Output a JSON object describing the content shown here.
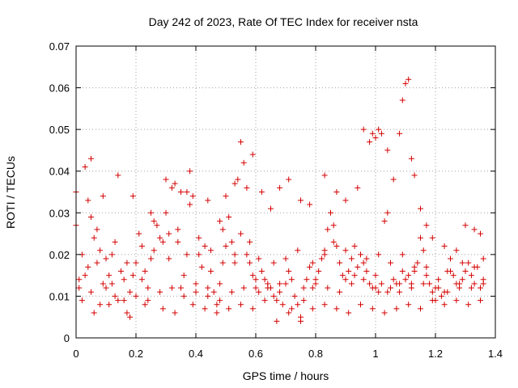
{
  "chart_data": {
    "type": "scatter",
    "title": "Day 242 of 2023, Rate Of TEC Index for receiver nsta",
    "xlabel": "GPS time / hours",
    "ylabel": "ROTI / TECUs",
    "xlim": [
      0,
      1.4
    ],
    "ylim": [
      0,
      0.07
    ],
    "x_ticks": [
      "0",
      "0.2",
      "0.4",
      "0.6",
      "0.8",
      "1",
      "1.2",
      "1.4"
    ],
    "y_ticks": [
      "0",
      "0.01",
      "0.02",
      "0.03",
      "0.04",
      "0.05",
      "0.06",
      "0.07"
    ],
    "grid": true,
    "marker": "+",
    "point_color": "#d40000",
    "series": [
      {
        "points": [
          [
            0.0,
            0.035
          ],
          [
            0.01,
            0.012
          ],
          [
            0.02,
            0.02
          ],
          [
            0.03,
            0.015
          ],
          [
            0.04,
            0.033
          ],
          [
            0.05,
            0.029
          ],
          [
            0.06,
            0.024
          ],
          [
            0.07,
            0.018
          ],
          [
            0.08,
            0.021
          ],
          [
            0.09,
            0.013
          ],
          [
            0.1,
            0.012
          ],
          [
            0.11,
            0.015
          ],
          [
            0.12,
            0.02
          ],
          [
            0.13,
            0.01
          ],
          [
            0.14,
            0.009
          ],
          [
            0.15,
            0.016
          ],
          [
            0.16,
            0.014
          ],
          [
            0.17,
            0.006
          ],
          [
            0.18,
            0.011
          ],
          [
            0.19,
            0.015
          ],
          [
            0.2,
            0.018
          ],
          [
            0.21,
            0.025
          ],
          [
            0.22,
            0.022
          ],
          [
            0.23,
            0.016
          ],
          [
            0.24,
            0.012
          ],
          [
            0.25,
            0.019
          ],
          [
            0.26,
            0.028
          ],
          [
            0.27,
            0.027
          ],
          [
            0.28,
            0.024
          ],
          [
            0.29,
            0.023
          ],
          [
            0.3,
            0.03
          ],
          [
            0.31,
            0.025
          ],
          [
            0.32,
            0.036
          ],
          [
            0.33,
            0.037
          ],
          [
            0.34,
            0.026
          ],
          [
            0.35,
            0.012
          ],
          [
            0.36,
            0.015
          ],
          [
            0.37,
            0.035
          ],
          [
            0.38,
            0.032
          ],
          [
            0.39,
            0.034
          ],
          [
            0.4,
            0.013
          ],
          [
            0.41,
            0.02
          ],
          [
            0.42,
            0.017
          ],
          [
            0.43,
            0.022
          ],
          [
            0.44,
            0.01
          ],
          [
            0.45,
            0.016
          ],
          [
            0.46,
            0.011
          ],
          [
            0.47,
            0.008
          ],
          [
            0.48,
            0.009
          ],
          [
            0.49,
            0.018
          ],
          [
            0.5,
            0.022
          ],
          [
            0.51,
            0.029
          ],
          [
            0.52,
            0.023
          ],
          [
            0.53,
            0.018
          ],
          [
            0.54,
            0.038
          ],
          [
            0.55,
            0.025
          ],
          [
            0.56,
            0.042
          ],
          [
            0.57,
            0.02
          ],
          [
            0.58,
            0.018
          ],
          [
            0.59,
            0.015
          ],
          [
            0.6,
            0.012
          ],
          [
            0.61,
            0.011
          ],
          [
            0.62,
            0.016
          ],
          [
            0.63,
            0.014
          ],
          [
            0.64,
            0.013
          ],
          [
            0.65,
            0.012
          ],
          [
            0.66,
            0.01
          ],
          [
            0.67,
            0.009
          ],
          [
            0.68,
            0.011
          ],
          [
            0.69,
            0.008
          ],
          [
            0.7,
            0.013
          ],
          [
            0.71,
            0.016
          ],
          [
            0.72,
            0.007
          ],
          [
            0.73,
            0.01
          ],
          [
            0.74,
            0.008
          ],
          [
            0.75,
            0.005
          ],
          [
            0.76,
            0.009
          ],
          [
            0.77,
            0.014
          ],
          [
            0.78,
            0.017
          ],
          [
            0.79,
            0.012
          ],
          [
            0.8,
            0.014
          ],
          [
            0.81,
            0.016
          ],
          [
            0.82,
            0.019
          ],
          [
            0.83,
            0.021
          ],
          [
            0.84,
            0.026
          ],
          [
            0.85,
            0.03
          ],
          [
            0.86,
            0.027
          ],
          [
            0.87,
            0.022
          ],
          [
            0.88,
            0.018
          ],
          [
            0.89,
            0.015
          ],
          [
            0.9,
            0.014
          ],
          [
            0.91,
            0.016
          ],
          [
            0.92,
            0.019
          ],
          [
            0.93,
            0.015
          ],
          [
            0.94,
            0.017
          ],
          [
            0.95,
            0.02
          ],
          [
            0.96,
            0.018
          ],
          [
            0.97,
            0.016
          ],
          [
            0.98,
            0.013
          ],
          [
            0.99,
            0.012
          ],
          [
            1.0,
            0.015
          ],
          [
            1.01,
            0.011
          ],
          [
            1.02,
            0.013
          ],
          [
            1.03,
            0.028
          ],
          [
            1.04,
            0.03
          ],
          [
            1.05,
            0.012
          ],
          [
            1.06,
            0.014
          ],
          [
            1.07,
            0.013
          ],
          [
            1.08,
            0.011
          ],
          [
            1.09,
            0.016
          ],
          [
            1.1,
            0.014
          ],
          [
            1.11,
            0.015
          ],
          [
            1.12,
            0.013
          ],
          [
            1.13,
            0.016
          ],
          [
            1.14,
            0.018
          ],
          [
            1.15,
            0.024
          ],
          [
            1.16,
            0.021
          ],
          [
            1.17,
            0.017
          ],
          [
            1.18,
            0.013
          ],
          [
            1.19,
            0.011
          ],
          [
            1.2,
            0.009
          ],
          [
            1.21,
            0.012
          ],
          [
            1.22,
            0.01
          ],
          [
            1.23,
            0.011
          ],
          [
            1.24,
            0.016
          ],
          [
            1.25,
            0.019
          ],
          [
            1.26,
            0.015
          ],
          [
            1.27,
            0.013
          ],
          [
            1.28,
            0.012
          ],
          [
            1.29,
            0.014
          ],
          [
            1.3,
            0.016
          ],
          [
            1.31,
            0.018
          ],
          [
            1.32,
            0.015
          ],
          [
            1.33,
            0.013
          ],
          [
            1.34,
            0.017
          ],
          [
            1.35,
            0.012
          ],
          [
            1.36,
            0.014
          ],
          [
            0.02,
            0.009
          ],
          [
            0.05,
            0.011
          ],
          [
            0.08,
            0.008
          ],
          [
            0.12,
            0.013
          ],
          [
            0.16,
            0.009
          ],
          [
            0.2,
            0.01
          ],
          [
            0.24,
            0.009
          ],
          [
            0.28,
            0.011
          ],
          [
            0.32,
            0.012
          ],
          [
            0.36,
            0.01
          ],
          [
            0.4,
            0.011
          ],
          [
            0.44,
            0.012
          ],
          [
            0.48,
            0.013
          ],
          [
            0.52,
            0.011
          ],
          [
            0.56,
            0.012
          ],
          [
            0.6,
            0.014
          ],
          [
            0.64,
            0.012
          ],
          [
            0.68,
            0.013
          ],
          [
            0.72,
            0.014
          ],
          [
            0.76,
            0.012
          ],
          [
            0.8,
            0.013
          ],
          [
            0.84,
            0.012
          ],
          [
            0.88,
            0.011
          ],
          [
            0.92,
            0.013
          ],
          [
            0.96,
            0.014
          ],
          [
            1.0,
            0.012
          ],
          [
            1.04,
            0.011
          ],
          [
            1.08,
            0.013
          ],
          [
            1.12,
            0.012
          ],
          [
            1.16,
            0.013
          ],
          [
            1.2,
            0.012
          ],
          [
            1.24,
            0.011
          ],
          [
            1.28,
            0.013
          ],
          [
            1.32,
            0.012
          ],
          [
            1.36,
            0.013
          ],
          [
            0.0,
            0.027
          ],
          [
            0.03,
            0.041
          ],
          [
            0.05,
            0.043
          ],
          [
            0.09,
            0.034
          ],
          [
            0.14,
            0.039
          ],
          [
            0.19,
            0.034
          ],
          [
            0.25,
            0.03
          ],
          [
            0.3,
            0.038
          ],
          [
            0.35,
            0.035
          ],
          [
            0.38,
            0.04
          ],
          [
            0.44,
            0.033
          ],
          [
            0.48,
            0.028
          ],
          [
            0.5,
            0.034
          ],
          [
            0.53,
            0.037
          ],
          [
            0.55,
            0.047
          ],
          [
            0.57,
            0.036
          ],
          [
            0.59,
            0.044
          ],
          [
            0.62,
            0.035
          ],
          [
            0.65,
            0.031
          ],
          [
            0.68,
            0.036
          ],
          [
            0.71,
            0.038
          ],
          [
            0.75,
            0.033
          ],
          [
            0.78,
            0.032
          ],
          [
            0.83,
            0.039
          ],
          [
            0.87,
            0.035
          ],
          [
            0.9,
            0.033
          ],
          [
            0.94,
            0.036
          ],
          [
            0.96,
            0.05
          ],
          [
            0.98,
            0.047
          ],
          [
            0.99,
            0.049
          ],
          [
            1.0,
            0.048
          ],
          [
            1.01,
            0.05
          ],
          [
            1.02,
            0.049
          ],
          [
            1.04,
            0.045
          ],
          [
            1.06,
            0.038
          ],
          [
            1.08,
            0.049
          ],
          [
            1.09,
            0.057
          ],
          [
            1.1,
            0.061
          ],
          [
            1.11,
            0.062
          ],
          [
            1.12,
            0.043
          ],
          [
            1.13,
            0.039
          ],
          [
            1.15,
            0.031
          ],
          [
            1.17,
            0.027
          ],
          [
            1.19,
            0.024
          ],
          [
            1.23,
            0.022
          ],
          [
            1.27,
            0.021
          ],
          [
            1.3,
            0.027
          ],
          [
            1.33,
            0.026
          ],
          [
            1.35,
            0.025
          ],
          [
            1.36,
            0.019
          ],
          [
            0.01,
            0.014
          ],
          [
            0.04,
            0.017
          ],
          [
            0.07,
            0.026
          ],
          [
            0.1,
            0.019
          ],
          [
            0.13,
            0.023
          ],
          [
            0.17,
            0.018
          ],
          [
            0.22,
            0.014
          ],
          [
            0.26,
            0.021
          ],
          [
            0.31,
            0.019
          ],
          [
            0.34,
            0.023
          ],
          [
            0.37,
            0.02
          ],
          [
            0.41,
            0.024
          ],
          [
            0.45,
            0.021
          ],
          [
            0.49,
            0.026
          ],
          [
            0.53,
            0.02
          ],
          [
            0.58,
            0.023
          ],
          [
            0.61,
            0.019
          ],
          [
            0.66,
            0.018
          ],
          [
            0.7,
            0.019
          ],
          [
            0.74,
            0.021
          ],
          [
            0.79,
            0.018
          ],
          [
            0.83,
            0.02
          ],
          [
            0.86,
            0.023
          ],
          [
            0.9,
            0.021
          ],
          [
            0.93,
            0.022
          ],
          [
            0.97,
            0.019
          ],
          [
            1.01,
            0.02
          ],
          [
            1.05,
            0.018
          ],
          [
            1.09,
            0.02
          ],
          [
            1.13,
            0.017
          ],
          [
            1.17,
            0.015
          ],
          [
            1.21,
            0.014
          ],
          [
            1.25,
            0.016
          ],
          [
            1.29,
            0.018
          ],
          [
            1.33,
            0.017
          ],
          [
            0.06,
            0.006
          ],
          [
            0.11,
            0.008
          ],
          [
            0.18,
            0.005
          ],
          [
            0.23,
            0.008
          ],
          [
            0.29,
            0.007
          ],
          [
            0.33,
            0.006
          ],
          [
            0.39,
            0.008
          ],
          [
            0.43,
            0.007
          ],
          [
            0.47,
            0.006
          ],
          [
            0.51,
            0.007
          ],
          [
            0.55,
            0.008
          ],
          [
            0.59,
            0.007
          ],
          [
            0.63,
            0.009
          ],
          [
            0.67,
            0.004
          ],
          [
            0.71,
            0.006
          ],
          [
            0.75,
            0.004
          ],
          [
            0.79,
            0.007
          ],
          [
            0.83,
            0.008
          ],
          [
            0.87,
            0.007
          ],
          [
            0.91,
            0.006
          ],
          [
            0.95,
            0.008
          ],
          [
            0.99,
            0.007
          ],
          [
            1.03,
            0.006
          ],
          [
            1.07,
            0.007
          ],
          [
            1.11,
            0.008
          ],
          [
            1.15,
            0.007
          ],
          [
            1.19,
            0.009
          ],
          [
            1.23,
            0.008
          ],
          [
            1.27,
            0.009
          ],
          [
            1.31,
            0.008
          ],
          [
            1.35,
            0.009
          ]
        ]
      }
    ]
  }
}
